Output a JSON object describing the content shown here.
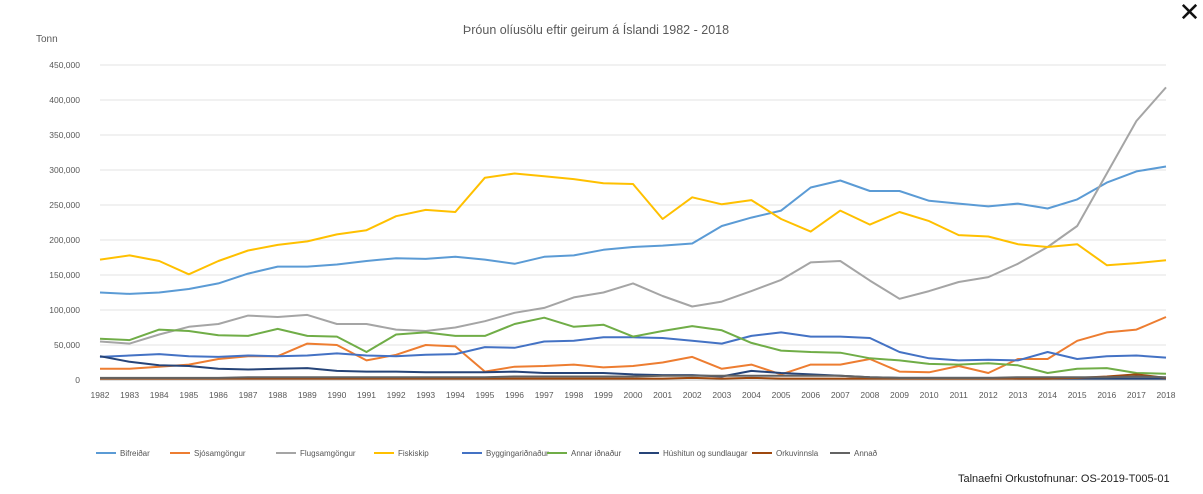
{
  "window": {
    "close_label": "✕"
  },
  "source_note": "Talnaefni Orkustofnunar: OS-2019-T005-01",
  "chart_data": {
    "type": "line",
    "title": "Þróun olíusölu eftir geirum á Íslandi 1982 - 2018",
    "ylabel": "Tonn",
    "xlabel": "",
    "ylim": [
      0,
      450000
    ],
    "yticks": [
      0,
      50000,
      100000,
      150000,
      200000,
      250000,
      300000,
      350000,
      400000,
      450000
    ],
    "ytick_labels": [
      "0",
      "50,000",
      "100,000",
      "150,000",
      "200,000",
      "250,000",
      "300,000",
      "350,000",
      "400,000",
      "450,000"
    ],
    "grid": true,
    "legend_position": "bottom-left",
    "x": [
      "1982",
      "1983",
      "1984",
      "1985",
      "1986",
      "1987",
      "1988",
      "1989",
      "1990",
      "1991",
      "1992",
      "1993",
      "1994",
      "1995",
      "1996",
      "1997",
      "1998",
      "1999",
      "2000",
      "2001",
      "2002",
      "2003",
      "2004",
      "2005",
      "2006",
      "2007",
      "2008",
      "2009",
      "2010",
      "2011",
      "2012",
      "2013",
      "2014",
      "2015",
      "2016",
      "2017",
      "2018"
    ],
    "series": [
      {
        "name": "Bifreiðar",
        "color": "#5b9bd5",
        "values": [
          125000,
          123000,
          125000,
          130000,
          138000,
          152000,
          162000,
          162000,
          165000,
          170000,
          174000,
          173000,
          176000,
          172000,
          166000,
          176000,
          178000,
          186000,
          190000,
          192000,
          195000,
          220000,
          232000,
          242000,
          275000,
          285000,
          270000,
          270000,
          256000,
          252000,
          248000,
          252000,
          245000,
          258000,
          282000,
          298000,
          305000
        ]
      },
      {
        "name": "Sjósamgöngur",
        "color": "#ed7d31",
        "values": [
          16000,
          16000,
          19000,
          22000,
          30000,
          34000,
          34000,
          52000,
          50000,
          28000,
          36000,
          50000,
          48000,
          12000,
          19000,
          20000,
          22000,
          18000,
          20000,
          25000,
          33000,
          16000,
          22000,
          8000,
          22000,
          22000,
          30000,
          12000,
          11000,
          20000,
          10000,
          30000,
          30000,
          56000,
          68000,
          72000,
          90000
        ]
      },
      {
        "name": "Flugsamgöngur",
        "color": "#a5a5a5",
        "values": [
          55000,
          52000,
          65000,
          76000,
          80000,
          92000,
          90000,
          93000,
          80000,
          80000,
          72000,
          70000,
          75000,
          84000,
          96000,
          103000,
          118000,
          125000,
          138000,
          120000,
          105000,
          112000,
          127000,
          143000,
          168000,
          170000,
          142000,
          116000,
          127000,
          140000,
          147000,
          166000,
          190000,
          220000,
          295000,
          370000,
          418000
        ]
      },
      {
        "name": "Fiskiskip",
        "color": "#ffc000",
        "values": [
          172000,
          178000,
          170000,
          151000,
          170000,
          185000,
          193000,
          198000,
          208000,
          214000,
          234000,
          243000,
          240000,
          289000,
          295000,
          291000,
          287000,
          281000,
          280000,
          230000,
          261000,
          251000,
          257000,
          230000,
          212000,
          242000,
          222000,
          240000,
          227000,
          207000,
          205000,
          194000,
          190000,
          194000,
          164000,
          167000,
          171000
        ]
      },
      {
        "name": "Byggingariðnaður",
        "color": "#4472c4",
        "values": [
          33000,
          35000,
          37000,
          34000,
          33000,
          35000,
          34000,
          35000,
          38000,
          35000,
          34000,
          36000,
          37000,
          47000,
          46000,
          55000,
          56000,
          61000,
          61000,
          60000,
          56000,
          52000,
          63000,
          68000,
          62000,
          62000,
          60000,
          40000,
          31000,
          28000,
          29000,
          28000,
          40000,
          30000,
          34000,
          35000,
          32000
        ]
      },
      {
        "name": "Annar iðnaður",
        "color": "#70ad47",
        "values": [
          59000,
          57000,
          72000,
          70000,
          64000,
          63000,
          73000,
          63000,
          62000,
          40000,
          65000,
          68000,
          63000,
          63000,
          80000,
          89000,
          76000,
          79000,
          62000,
          70000,
          77000,
          71000,
          53000,
          42000,
          40000,
          39000,
          31000,
          28000,
          23000,
          22000,
          24000,
          21000,
          10000,
          16000,
          17000,
          10000,
          9000
        ]
      },
      {
        "name": "Húshitun og sundlaugar",
        "color": "#264478",
        "values": [
          34000,
          26000,
          21000,
          20000,
          16000,
          15000,
          16000,
          17000,
          13000,
          12000,
          12000,
          11000,
          11000,
          11000,
          12000,
          10000,
          10000,
          10000,
          8000,
          7000,
          7000,
          5000,
          13000,
          10000,
          8000,
          6000,
          4000,
          3000,
          3000,
          3000,
          3000,
          2000,
          2000,
          2000,
          2000,
          2000,
          2000
        ]
      },
      {
        "name": "Orkuvinnsla",
        "color": "#9e480e",
        "values": [
          2000,
          2000,
          2000,
          2000,
          2000,
          2000,
          2000,
          2000,
          2000,
          2000,
          2000,
          2000,
          2000,
          2000,
          2000,
          2000,
          2000,
          2000,
          2000,
          2000,
          3000,
          2000,
          3000,
          2000,
          2000,
          2000,
          2000,
          2000,
          2000,
          2000,
          2000,
          2000,
          2000,
          3000,
          5000,
          8000,
          3000
        ]
      },
      {
        "name": "Annað",
        "color": "#636363",
        "values": [
          3000,
          3000,
          3000,
          3000,
          3000,
          4000,
          4000,
          4000,
          4000,
          4000,
          4000,
          4000,
          4000,
          4000,
          5000,
          5000,
          5000,
          5000,
          5000,
          6000,
          6000,
          6000,
          6000,
          6000,
          6000,
          6000,
          4000,
          3000,
          3000,
          3000,
          3000,
          4000,
          4000,
          4000,
          4000,
          5000,
          4000
        ]
      }
    ]
  }
}
